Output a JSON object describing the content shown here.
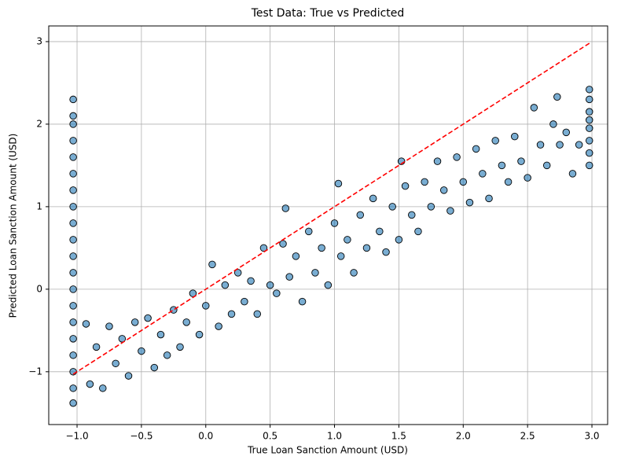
{
  "chart_data": {
    "type": "scatter",
    "title": "Test Data: True vs Predicted",
    "x_label": "True Loan Sanction Amount (USD)",
    "y_label": "Predicted Loan Sanction Amount (USD)",
    "color": "#1f77b4",
    "edge_color": "#000000",
    "grid": true,
    "x": [
      -1.03,
      -1.03,
      -1.03,
      -1.03,
      -1.03,
      -1.03,
      -1.03,
      -1.03,
      -1.03,
      -1.03,
      -1.03,
      -1.03,
      -1.03,
      -1.03,
      -1.03,
      -1.03,
      -1.03,
      -1.03,
      -1.03,
      -1.03,
      2.98,
      2.98,
      2.98,
      2.98,
      2.98,
      2.98,
      2.98,
      2.98,
      -0.93,
      -0.9,
      -0.85,
      -0.8,
      -0.75,
      -0.7,
      -0.65,
      -0.6,
      -0.55,
      -0.5,
      -0.45,
      -0.4,
      -0.35,
      -0.3,
      -0.25,
      -0.2,
      -0.15,
      -0.1,
      -0.05,
      0,
      0.05,
      0.1,
      0.15,
      0.2,
      0.25,
      0.3,
      0.35,
      0.4,
      0.45,
      0.5,
      0.55,
      0.6,
      0.62,
      0.65,
      0.7,
      0.75,
      0.8,
      0.85,
      0.9,
      0.95,
      1.0,
      1.03,
      1.05,
      1.1,
      1.15,
      1.2,
      1.25,
      1.3,
      1.35,
      1.4,
      1.45,
      1.5,
      1.52,
      1.55,
      1.6,
      1.65,
      1.7,
      1.75,
      1.8,
      1.85,
      1.9,
      1.95,
      2.0,
      2.05,
      2.1,
      2.15,
      2.2,
      2.25,
      2.3,
      2.35,
      2.4,
      2.45,
      2.5,
      2.55,
      2.6,
      2.65,
      2.7,
      2.73,
      2.75,
      2.8,
      2.85,
      2.9
    ],
    "y": [
      -1.38,
      -1.2,
      -1.0,
      -0.8,
      -0.6,
      -0.4,
      -0.2,
      0,
      0.2,
      0.4,
      0.6,
      0.8,
      1.0,
      1.2,
      1.4,
      1.6,
      1.8,
      2.0,
      2.1,
      2.3,
      1.5,
      1.65,
      1.8,
      1.95,
      2.05,
      2.15,
      2.3,
      2.42,
      -0.42,
      -1.15,
      -0.7,
      -1.2,
      -0.45,
      -0.9,
      -0.6,
      -1.05,
      -0.4,
      -0.75,
      -0.35,
      -0.95,
      -0.55,
      -0.8,
      -0.25,
      -0.7,
      -0.4,
      -0.05,
      -0.55,
      -0.2,
      0.3,
      -0.45,
      0.05,
      -0.3,
      0.2,
      -0.15,
      0.1,
      -0.3,
      0.5,
      0.05,
      -0.05,
      0.55,
      0.98,
      0.15,
      0.4,
      -0.15,
      0.7,
      0.2,
      0.5,
      0.05,
      0.8,
      1.28,
      0.4,
      0.6,
      0.2,
      0.9,
      0.5,
      1.1,
      0.7,
      0.45,
      1.0,
      0.6,
      1.55,
      1.25,
      0.9,
      0.7,
      1.3,
      1.0,
      1.55,
      1.2,
      0.95,
      1.6,
      1.3,
      1.05,
      1.7,
      1.4,
      1.1,
      1.8,
      1.5,
      1.3,
      1.85,
      1.55,
      1.35,
      2.2,
      1.75,
      1.5,
      2.0,
      2.33,
      1.75,
      1.9,
      1.4,
      1.75
    ],
    "reference_line": {
      "x": [
        -1.03,
        2.98
      ],
      "y": [
        -1.03,
        2.98
      ],
      "color": "#ff0000"
    },
    "xlim": [
      -1.22,
      3.122
    ],
    "ylim": [
      -1.64,
      3.19
    ],
    "xticks": [
      {
        "value": -1,
        "label": "−1.0"
      },
      {
        "value": -0.5,
        "label": "−0.5"
      },
      {
        "value": 0,
        "label": "0.0"
      },
      0.5,
      {
        "value": 1,
        "label": "1.0"
      },
      1.5,
      {
        "value": 2,
        "label": "2.0"
      },
      2.5,
      {
        "value": 3,
        "label": "3.0"
      }
    ],
    "yticks": [
      {
        "value": -1,
        "label": "−1"
      },
      0,
      1,
      2,
      3
    ]
  }
}
